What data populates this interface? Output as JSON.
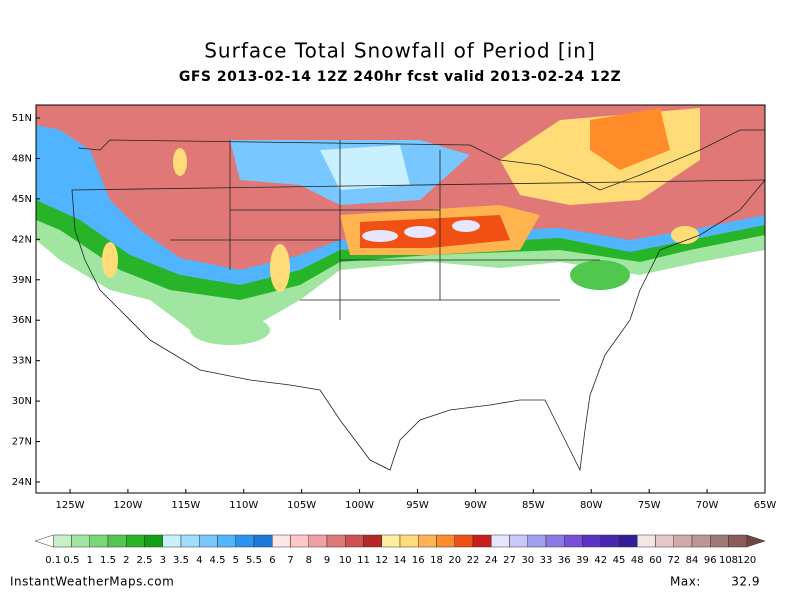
{
  "title": "Surface Total Snowfall of Period [in]",
  "subtitle": "GFS 2013-02-14 12Z 240hr fcst valid 2013-02-24 12Z",
  "latitude_labels": [
    "51N",
    "48N",
    "45N",
    "42N",
    "39N",
    "36N",
    "33N",
    "30N",
    "27N",
    "24N"
  ],
  "longitude_labels": [
    "125W",
    "120W",
    "115W",
    "110W",
    "105W",
    "100W",
    "95W",
    "90W",
    "85W",
    "80W",
    "75W",
    "70W",
    "65W"
  ],
  "colorbar": {
    "labels": [
      "0.1",
      "0.5",
      "1",
      "1.5",
      "2",
      "2.5",
      "3",
      "3.5",
      "4",
      "4.5",
      "5",
      "5.5",
      "6",
      "7",
      "8",
      "9",
      "10",
      "11",
      "12",
      "14",
      "16",
      "18",
      "20",
      "22",
      "24",
      "27",
      "30",
      "33",
      "36",
      "39",
      "42",
      "45",
      "48",
      "60",
      "72",
      "84",
      "96",
      "108",
      "120"
    ],
    "colors": [
      "#ffffff",
      "#c8f0c8",
      "#a0e6a0",
      "#78d878",
      "#50c850",
      "#28b428",
      "#14a014",
      "#c8f0ff",
      "#a0dcff",
      "#78c8ff",
      "#50b4ff",
      "#2896f0",
      "#1e78dc",
      "#ffe6e6",
      "#ffc8c8",
      "#f0a0a0",
      "#e07878",
      "#d05050",
      "#b42828",
      "#fff0a0",
      "#ffdc78",
      "#ffb450",
      "#ff8c28",
      "#f05014",
      "#c81e1e",
      "#e6e6ff",
      "#c8c8ff",
      "#a0a0f0",
      "#8c78e6",
      "#7850dc",
      "#5a32c8",
      "#4628b4",
      "#321e96",
      "#f5e6e6",
      "#e6c8c8",
      "#d2aaaa",
      "#be9696",
      "#a07878",
      "#8c5a5a",
      "#6e4646"
    ]
  },
  "footer": {
    "source": "InstantWeatherMaps.com",
    "max_label": "Max:",
    "max_value": "32.9"
  }
}
